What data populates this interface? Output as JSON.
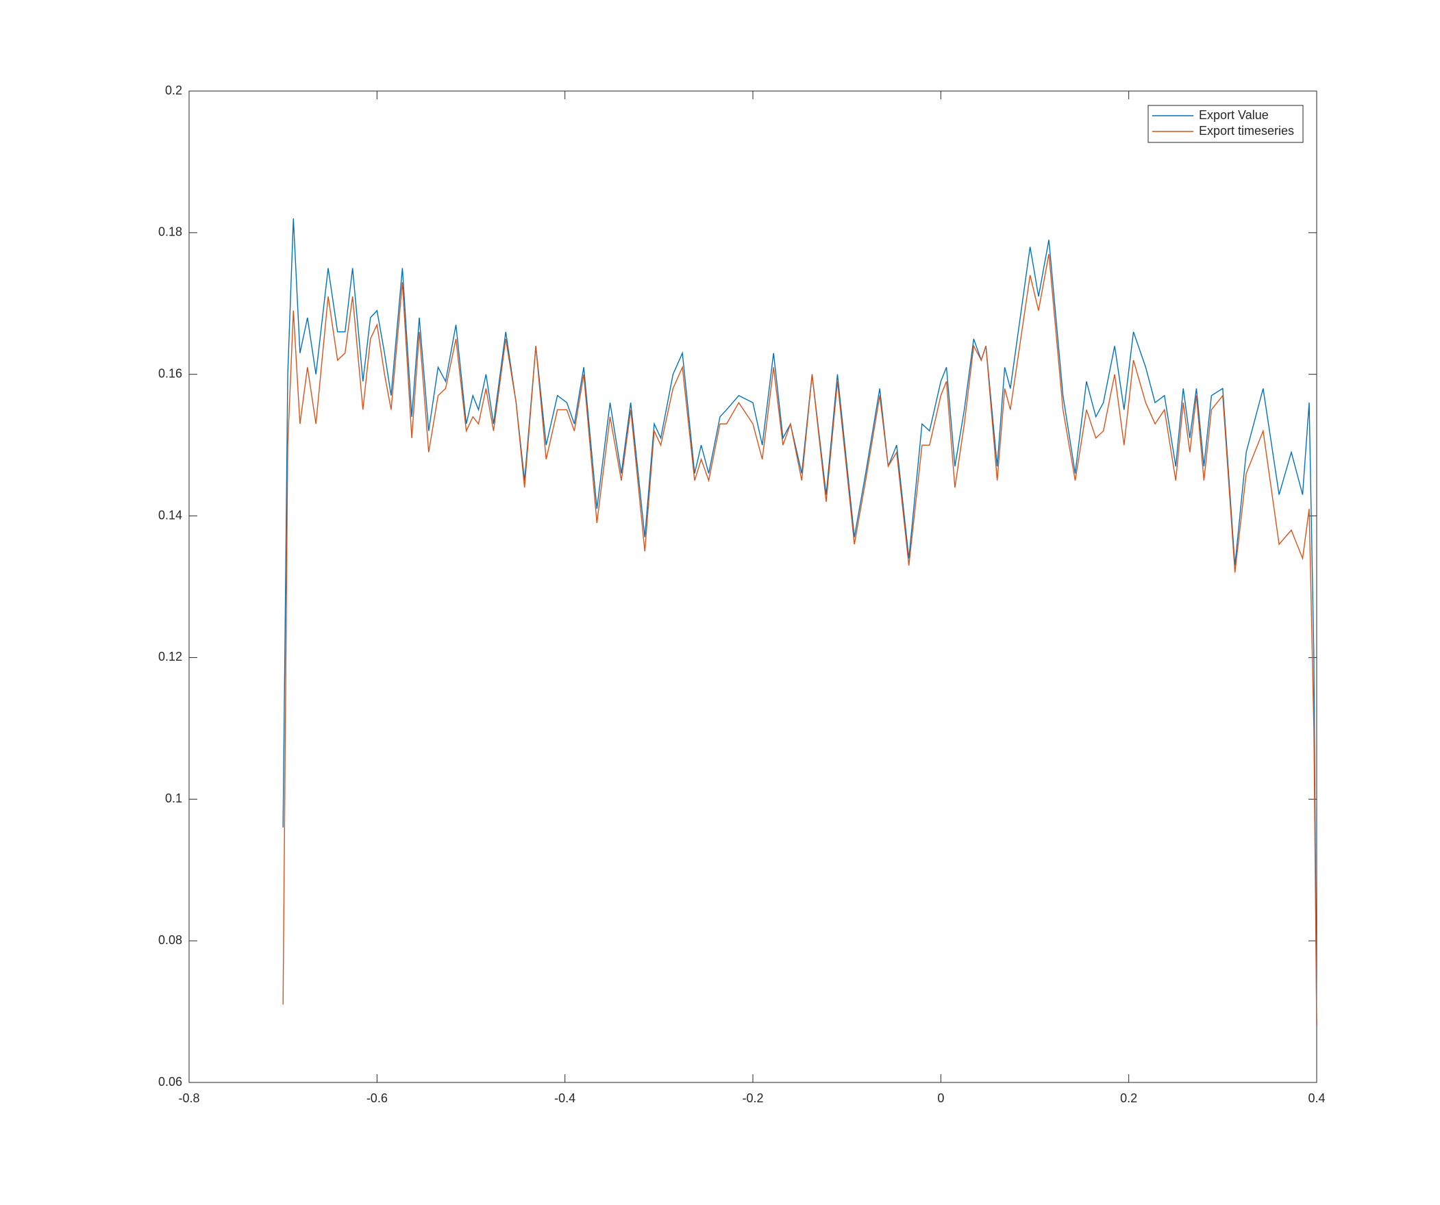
{
  "chart_data": {
    "type": "line",
    "x": [
      -0.7,
      -0.695,
      -0.689,
      -0.682,
      -0.674,
      -0.665,
      -0.652,
      -0.642,
      -0.634,
      -0.626,
      -0.615,
      -0.607,
      -0.6,
      -0.592,
      -0.585,
      -0.573,
      -0.563,
      -0.555,
      -0.545,
      -0.535,
      -0.527,
      -0.516,
      -0.505,
      -0.498,
      -0.492,
      -0.484,
      -0.476,
      -0.463,
      -0.452,
      -0.443,
      -0.431,
      -0.42,
      -0.408,
      -0.398,
      -0.39,
      -0.38,
      -0.366,
      -0.352,
      -0.34,
      -0.33,
      -0.315,
      -0.305,
      -0.298,
      -0.285,
      -0.275,
      -0.262,
      -0.255,
      -0.247,
      -0.235,
      -0.228,
      -0.215,
      -0.2,
      -0.19,
      -0.178,
      -0.168,
      -0.16,
      -0.148,
      -0.137,
      -0.122,
      -0.11,
      -0.092,
      -0.08,
      -0.065,
      -0.056,
      -0.047,
      -0.034,
      -0.02,
      -0.012,
      0,
      0.006,
      0.015,
      0.025,
      0.035,
      0.043,
      0.048,
      0.06,
      0.068,
      0.074,
      0.095,
      0.104,
      0.115,
      0.13,
      0.143,
      0.155,
      0.165,
      0.173,
      0.185,
      0.195,
      0.205,
      0.218,
      0.228,
      0.238,
      0.25,
      0.258,
      0.265,
      0.272,
      0.28,
      0.288,
      0.3,
      0.313,
      0.325,
      0.343,
      0.36,
      0.373,
      0.385,
      0.392,
      0.397,
      0.4
    ],
    "series": [
      {
        "name": "Export Value",
        "color": "#0072bd",
        "values": [
          0.096,
          0.16,
          0.182,
          0.163,
          0.168,
          0.16,
          0.175,
          0.166,
          0.166,
          0.175,
          0.159,
          0.168,
          0.169,
          0.163,
          0.157,
          0.175,
          0.154,
          0.168,
          0.152,
          0.161,
          0.159,
          0.167,
          0.153,
          0.157,
          0.155,
          0.16,
          0.153,
          0.166,
          0.156,
          0.145,
          0.164,
          0.15,
          0.157,
          0.156,
          0.153,
          0.161,
          0.141,
          0.156,
          0.146,
          0.156,
          0.137,
          0.153,
          0.151,
          0.16,
          0.163,
          0.146,
          0.15,
          0.146,
          0.154,
          0.155,
          0.157,
          0.156,
          0.15,
          0.163,
          0.151,
          0.153,
          0.146,
          0.16,
          0.143,
          0.16,
          0.137,
          0.146,
          0.158,
          0.147,
          0.15,
          0.134,
          0.153,
          0.152,
          0.159,
          0.161,
          0.147,
          0.155,
          0.165,
          0.162,
          0.164,
          0.147,
          0.161,
          0.158,
          0.178,
          0.171,
          0.179,
          0.157,
          0.146,
          0.159,
          0.154,
          0.156,
          0.164,
          0.155,
          0.166,
          0.161,
          0.156,
          0.157,
          0.147,
          0.158,
          0.151,
          0.158,
          0.147,
          0.157,
          0.158,
          0.133,
          0.149,
          0.158,
          0.143,
          0.149,
          0.143,
          0.156,
          0.12,
          0.068
        ]
      },
      {
        "name": "Export timeseries",
        "color": "#d95319",
        "values": [
          0.071,
          0.15,
          0.169,
          0.153,
          0.161,
          0.153,
          0.171,
          0.162,
          0.163,
          0.171,
          0.155,
          0.165,
          0.167,
          0.16,
          0.155,
          0.173,
          0.151,
          0.166,
          0.149,
          0.157,
          0.158,
          0.165,
          0.152,
          0.154,
          0.153,
          0.158,
          0.152,
          0.165,
          0.156,
          0.144,
          0.164,
          0.148,
          0.155,
          0.155,
          0.152,
          0.16,
          0.139,
          0.154,
          0.145,
          0.155,
          0.135,
          0.152,
          0.15,
          0.158,
          0.161,
          0.145,
          0.148,
          0.145,
          0.153,
          0.153,
          0.156,
          0.153,
          0.148,
          0.161,
          0.15,
          0.153,
          0.145,
          0.16,
          0.142,
          0.159,
          0.136,
          0.145,
          0.157,
          0.147,
          0.149,
          0.133,
          0.15,
          0.15,
          0.157,
          0.159,
          0.144,
          0.153,
          0.164,
          0.162,
          0.164,
          0.145,
          0.158,
          0.155,
          0.174,
          0.169,
          0.177,
          0.155,
          0.145,
          0.155,
          0.151,
          0.152,
          0.16,
          0.15,
          0.162,
          0.156,
          0.153,
          0.155,
          0.145,
          0.156,
          0.149,
          0.157,
          0.145,
          0.155,
          0.157,
          0.132,
          0.146,
          0.152,
          0.136,
          0.138,
          0.134,
          0.141,
          0.11,
          0.068
        ]
      }
    ],
    "xlim": [
      -0.8,
      0.4
    ],
    "xticks": [
      -0.8,
      -0.6,
      -0.4,
      -0.2,
      0,
      0.2,
      0.4
    ],
    "ylim": [
      0.06,
      0.2
    ],
    "yticks": [
      0.06,
      0.08,
      0.1,
      0.12,
      0.14,
      0.16,
      0.18,
      0.2
    ],
    "legend": "top-right"
  }
}
